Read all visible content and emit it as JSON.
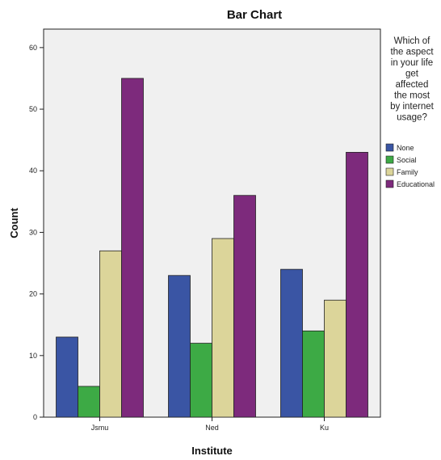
{
  "chart_data": {
    "type": "bar",
    "title": "Bar Chart",
    "xlabel": "Institute",
    "ylabel": "Count",
    "categories": [
      "Jsmu",
      "Ned",
      "Ku"
    ],
    "ylim": [
      0,
      63
    ],
    "yticks": [
      0,
      10,
      20,
      30,
      40,
      50,
      60
    ],
    "legend_title": [
      "Which of",
      "the aspect",
      "in your life",
      "get",
      "affected",
      "the most",
      "by internet",
      "usage?"
    ],
    "legend_position": "right",
    "grid": false,
    "series": [
      {
        "name": "None",
        "color": "#3a55a4",
        "values": [
          13,
          23,
          24
        ]
      },
      {
        "name": "Social",
        "color": "#3daa45",
        "values": [
          5,
          12,
          14
        ]
      },
      {
        "name": "Family",
        "color": "#dcd59a",
        "values": [
          27,
          29,
          19
        ]
      },
      {
        "name": "Educational",
        "color": "#7d2a7c",
        "values": [
          55,
          36,
          43
        ]
      }
    ],
    "plot_background": "#f0f0f0"
  }
}
